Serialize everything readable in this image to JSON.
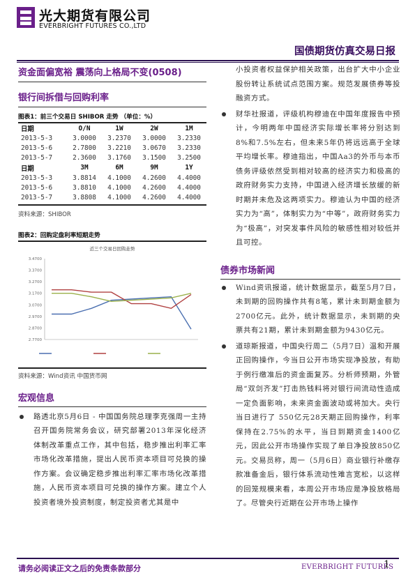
{
  "header": {
    "company_cn": "光大期货有限公司",
    "company_en": "EVERBRIGHT FUTURES CO.,LTD",
    "report_title": "国债期货仿真交易日报"
  },
  "main_title": "资金面偏宽裕 震荡向上格局不变(0508)",
  "section1": {
    "title": "银行间拆借与回购利率",
    "fig1_title": "图表1：前三个交易日 SHIBOR 走势 （单位：%）",
    "table1": {
      "headers": [
        "日期",
        "O/N",
        "1W",
        "2W",
        "1M"
      ],
      "rows": [
        [
          "2013-5-3",
          "3.0000",
          "3.2370",
          "3.0000",
          "3.2330"
        ],
        [
          "2013-5-6",
          "2.7800",
          "3.2210",
          "3.0670",
          "3.2330"
        ],
        [
          "2013-5-7",
          "2.3600",
          "3.1760",
          "3.1500",
          "3.2500"
        ]
      ]
    },
    "table2": {
      "headers": [
        "日期",
        "3M",
        "6M",
        "9M",
        "1Y"
      ],
      "rows": [
        [
          "2013-5-3",
          "3.8814",
          "4.1000",
          "4.2600",
          "4.4000"
        ],
        [
          "2013-5-6",
          "3.8810",
          "4.1000",
          "4.2600",
          "4.4000"
        ],
        [
          "2013-5-7",
          "3.8808",
          "4.1000",
          "4.2600",
          "4.4000"
        ]
      ]
    },
    "source1": "资料来源：SHIBOR",
    "fig2_title": "图表2：回购定盘利率短期走势",
    "source2": "资料来源：Wind资讯 中国货币网"
  },
  "chart_data": {
    "type": "line",
    "title": "近三个交易日回购走势",
    "yticks": [
      "3.4700",
      "3.3700",
      "3.2700",
      "3.1700",
      "3.0700",
      "2.9700",
      "2.8700",
      "2.7700"
    ],
    "ylim": [
      2.77,
      3.47
    ],
    "series": [
      {
        "name": "",
        "color": "#4a6fb0",
        "values": [
          2.99,
          2.99,
          3.04,
          3.11,
          3.12,
          3.13,
          3.14,
          2.86
        ]
      },
      {
        "name": "",
        "color": "#b04040",
        "values": [
          3.2,
          3.2,
          3.18,
          3.18,
          3.08,
          3.08,
          3.04,
          3.16
        ]
      },
      {
        "name": "",
        "color": "#9ab04a",
        "values": [
          3.17,
          3.17,
          3.14,
          3.1,
          3.11,
          3.12,
          3.13,
          3.17
        ]
      }
    ],
    "legend": [
      "",
      "",
      ""
    ]
  },
  "section2": {
    "title": "宏观信息",
    "p1": "路透北京5月6日 - 中国国务院总理李克强周一主持召开国务院常务会议，研究部署2013年深化经济体制改革重点工作，其中包括，稳步推出利率汇率市场化改革措施，提出人民币资本项目可兑换的操作方案。会议确定稳步推出利率汇率市场化改革措施，人民币资本项目可兑换的操作方案。建立个人投资者境外投资制度，制定投资者尤其是中"
  },
  "right": {
    "p1_cont": "小投资者权益保护相关政策，出台扩大中小企业股份转让系统试点范围方案。规范发展债券等投融资方式。",
    "p2": "财华社报道，评级机构穆迪在中国年度报告中预计，今明两年中国经济实际增长率将分别达到8%和7.5%左右，但未来5年仍将远远高于全球平均增长率。穆迪指出，中国Aa3的外币与本币债务评级依然受到相对较高的经济实力和极高的政府财务实力支持，中国进入经济增长放缓的新时期并未危及这两项实力。穆迪认为中国的经济实力为“高”，体制实力为“中等”，政府财务实力为“极高”，对突发事件风险的敏感性相对较低并且可控。",
    "section3_title": "债券市场新闻",
    "p3": "Wind资讯报道，统计数据显示，截至5月7日，未到期的回购操作共有8笔，累计未到期金额为2700亿元。此外，统计数据显示，未到期的央票共有21期，累计未到期金额为9430亿元。",
    "p4": "道琼斯报道，中国央行周二（5月7日）温和开展正回购操作，今当日公开市场实现净投放，有助于例行缴准后的资金面复苏。分析师预期，外管局“双剑齐发”打击热钱料将对银行间流动性造成一定负面影响，未来资金面波动或将加大。央行当日进行了 550亿元28天期正回购操作，利率保持在2.75%的水平，当日到期资金1400亿元，因此公开市场操作实现了单日净投放850亿元。交易员称，周一（5月6日）商业银行补缴存款准备金后，银行体系流动性难言宽松，以这样的回笼规模来看，本周公开市场应是净投放格局了。尽管央行近期在公开市场上操作"
  },
  "footer": {
    "disclaimer": "请务必阅读正文之后的免责条款部分",
    "brand": "EVERBRIGHT FUTURES",
    "page": "1"
  }
}
